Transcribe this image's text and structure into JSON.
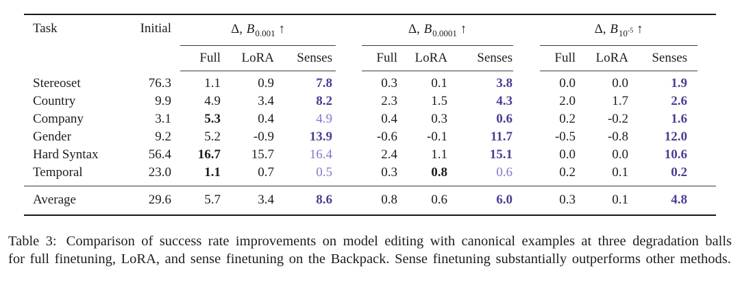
{
  "table": {
    "task_header": "Task",
    "initial_header": "Initial",
    "groups": [
      {
        "delta": "Δ,",
        "var": "B",
        "sub": "0.001",
        "arrow": "↑",
        "cols": [
          "Full",
          "LoRA",
          "Senses"
        ]
      },
      {
        "delta": "Δ,",
        "var": "B",
        "sub": "0.0001",
        "arrow": "↑",
        "cols": [
          "Full",
          "LoRA",
          "Senses"
        ]
      },
      {
        "delta": "Δ,",
        "var": "B",
        "sub_base": "10",
        "sub_exp": "-5",
        "arrow": "↑",
        "cols": [
          "Full",
          "LoRA",
          "Senses"
        ]
      }
    ],
    "rows": [
      {
        "task": "Stereoset",
        "initial": "76.3",
        "cells": [
          {
            "v": "1.1"
          },
          {
            "v": "0.9"
          },
          {
            "v": "7.8",
            "s": "best"
          },
          {
            "v": "0.3"
          },
          {
            "v": "0.1"
          },
          {
            "v": "3.8",
            "s": "best"
          },
          {
            "v": "0.0"
          },
          {
            "v": "0.0"
          },
          {
            "v": "1.9",
            "s": "best"
          }
        ]
      },
      {
        "task": "Country",
        "initial": "9.9",
        "cells": [
          {
            "v": "4.9"
          },
          {
            "v": "3.4"
          },
          {
            "v": "8.2",
            "s": "best"
          },
          {
            "v": "2.3"
          },
          {
            "v": "1.5"
          },
          {
            "v": "4.3",
            "s": "best"
          },
          {
            "v": "2.0"
          },
          {
            "v": "1.7"
          },
          {
            "v": "2.6",
            "s": "best"
          }
        ]
      },
      {
        "task": "Company",
        "initial": "3.1",
        "cells": [
          {
            "v": "5.3",
            "s": "bold"
          },
          {
            "v": "0.4"
          },
          {
            "v": "4.9",
            "s": "senses"
          },
          {
            "v": "0.4"
          },
          {
            "v": "0.3"
          },
          {
            "v": "0.6",
            "s": "best"
          },
          {
            "v": "0.2"
          },
          {
            "v": "-0.2"
          },
          {
            "v": "1.6",
            "s": "best"
          }
        ]
      },
      {
        "task": "Gender",
        "initial": "9.2",
        "cells": [
          {
            "v": "5.2"
          },
          {
            "v": "-0.9"
          },
          {
            "v": "13.9",
            "s": "best"
          },
          {
            "v": "-0.6"
          },
          {
            "v": "-0.1"
          },
          {
            "v": "11.7",
            "s": "best"
          },
          {
            "v": "-0.5"
          },
          {
            "v": "-0.8"
          },
          {
            "v": "12.0",
            "s": "best"
          }
        ]
      },
      {
        "task": "Hard Syntax",
        "initial": "56.4",
        "cells": [
          {
            "v": "16.7",
            "s": "bold"
          },
          {
            "v": "15.7"
          },
          {
            "v": "16.4",
            "s": "senses"
          },
          {
            "v": "2.4"
          },
          {
            "v": "1.1"
          },
          {
            "v": "15.1",
            "s": "best"
          },
          {
            "v": "0.0"
          },
          {
            "v": "0.0"
          },
          {
            "v": "10.6",
            "s": "best"
          }
        ]
      },
      {
        "task": "Temporal",
        "initial": "23.0",
        "cells": [
          {
            "v": "1.1",
            "s": "bold"
          },
          {
            "v": "0.7"
          },
          {
            "v": "0.5",
            "s": "senses"
          },
          {
            "v": "0.3"
          },
          {
            "v": "0.8",
            "s": "bold"
          },
          {
            "v": "0.6",
            "s": "senses"
          },
          {
            "v": "0.2"
          },
          {
            "v": "0.1"
          },
          {
            "v": "0.2",
            "s": "best"
          }
        ]
      }
    ],
    "average": {
      "task": "Average",
      "initial": "29.6",
      "cells": [
        {
          "v": "5.7"
        },
        {
          "v": "3.4"
        },
        {
          "v": "8.6",
          "s": "best"
        },
        {
          "v": "0.8"
        },
        {
          "v": "0.6"
        },
        {
          "v": "6.0",
          "s": "best"
        },
        {
          "v": "0.3"
        },
        {
          "v": "0.1"
        },
        {
          "v": "4.8",
          "s": "best"
        }
      ]
    }
  },
  "caption": {
    "tag": "Table 3:",
    "text": "Comparison of success rate improvements on model editing with canonical examples at three degradation balls for full finetuning, LoRA, and sense finetuning on the Backpack.  Sense finetuning substantially outperforms other methods."
  },
  "colors": {
    "best_value": "#4c3d94",
    "senses_plain": "#8478c8",
    "text": "#1c1c1c"
  }
}
